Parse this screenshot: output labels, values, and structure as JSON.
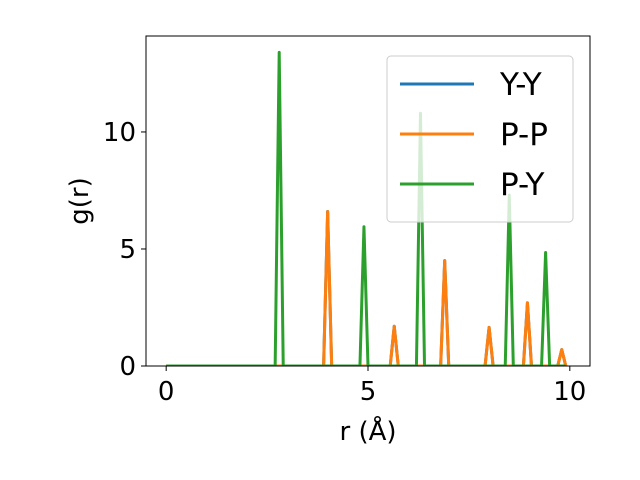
{
  "chart_data": {
    "type": "line",
    "xlabel": "r (Å)",
    "ylabel": "g(r)",
    "xlim": [
      -0.5,
      10.5
    ],
    "ylim": [
      0,
      14.1
    ],
    "x_ticks": [
      0,
      5,
      10
    ],
    "y_ticks": [
      0,
      5,
      10
    ],
    "grid": false,
    "legend_position": "top-right",
    "peak_half_width": 0.1,
    "series": [
      {
        "name": "Y-Y",
        "color": "#1f77b4",
        "baseline_range": [
          0,
          9.9
        ],
        "peaks": [
          {
            "x": 4.0,
            "y": 6.6
          },
          {
            "x": 5.65,
            "y": 1.7
          },
          {
            "x": 6.9,
            "y": 4.5
          },
          {
            "x": 8.0,
            "y": 1.65
          },
          {
            "x": 8.95,
            "y": 2.7
          },
          {
            "x": 9.8,
            "y": 0.7
          }
        ]
      },
      {
        "name": "P-P",
        "color": "#ff7f0e",
        "baseline_range": [
          0,
          9.9
        ],
        "peaks": [
          {
            "x": 4.0,
            "y": 6.6
          },
          {
            "x": 5.65,
            "y": 1.7
          },
          {
            "x": 6.9,
            "y": 4.5
          },
          {
            "x": 8.0,
            "y": 1.65
          },
          {
            "x": 8.95,
            "y": 2.7
          },
          {
            "x": 9.8,
            "y": 0.7
          }
        ]
      },
      {
        "name": "P-Y",
        "color": "#2ca02c",
        "baseline_range": [
          0,
          9.9
        ],
        "peaks": [
          {
            "x": 2.8,
            "y": 13.4
          },
          {
            "x": 4.9,
            "y": 5.95
          },
          {
            "x": 6.3,
            "y": 10.8
          },
          {
            "x": 8.5,
            "y": 7.3
          },
          {
            "x": 9.4,
            "y": 4.85
          }
        ]
      }
    ]
  }
}
